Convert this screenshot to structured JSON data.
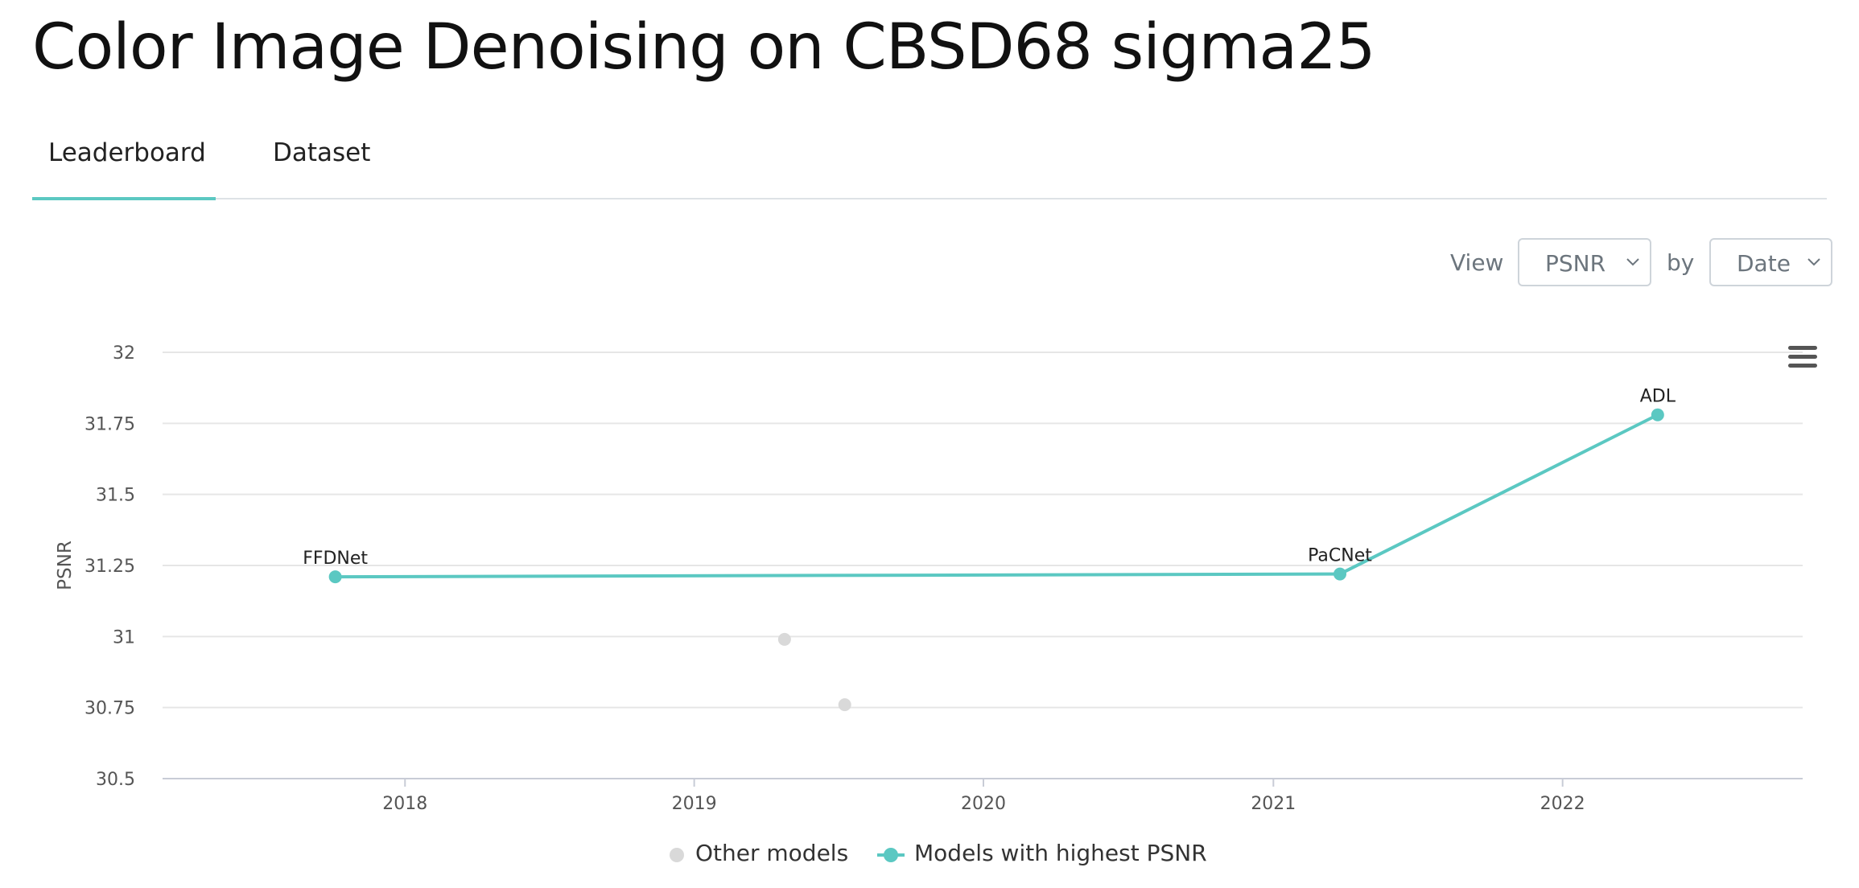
{
  "page": {
    "title": "Color Image Denoising on CBSD68 sigma25"
  },
  "tabs": [
    {
      "label": "Leaderboard",
      "active": true
    },
    {
      "label": "Dataset",
      "active": false
    }
  ],
  "controls": {
    "view_label": "View",
    "metric_value": "PSNR",
    "by_label": "by",
    "axis_value": "Date"
  },
  "colors": {
    "accent": "#5bc8c2",
    "other": "#d9d9d9",
    "grid": "#e6e6e6"
  },
  "icons": {
    "menu": "hamburger-menu-icon",
    "chevron": "chevron-down-icon"
  },
  "chart_data": {
    "type": "line",
    "ylabel": "PSNR",
    "xlabel": "",
    "ylim": [
      30.5,
      32
    ],
    "xlim": [
      "2017-03-01",
      "2022-10-31"
    ],
    "y_ticks": [
      "30.5",
      "30.75",
      "31",
      "31.25",
      "31.5",
      "31.75",
      "32"
    ],
    "x_ticks": [
      "2018",
      "2019",
      "2020",
      "2021",
      "2022"
    ],
    "grid": true,
    "legend_position": "bottom",
    "series": [
      {
        "name": "Other models",
        "kind": "scatter",
        "color": "#d9d9d9",
        "points": [
          {
            "x": "2019-04-25",
            "y": 30.99
          },
          {
            "x": "2019-07-10",
            "y": 30.76
          }
        ]
      },
      {
        "name": "Models with highest PSNR",
        "kind": "line",
        "color": "#5bc8c2",
        "points": [
          {
            "x": "2017-10-05",
            "y": 31.21,
            "label": "FFDNet"
          },
          {
            "x": "2021-03-26",
            "y": 31.22,
            "label": "PaCNet"
          },
          {
            "x": "2022-05-01",
            "y": 31.78,
            "label": "ADL"
          }
        ]
      }
    ]
  }
}
